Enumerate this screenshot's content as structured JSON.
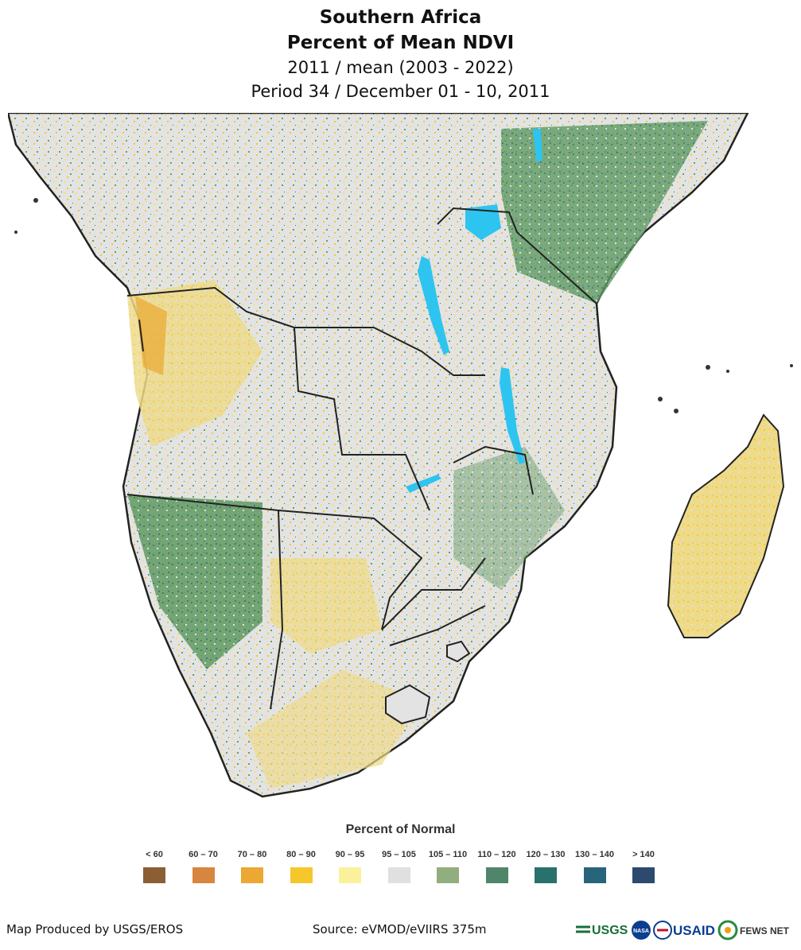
{
  "title": {
    "line1": "Southern Africa",
    "line2": "Percent of Mean NDVI",
    "line3": "2011 / mean (2003 - 2022)",
    "line4": "Period 34 / December 01 - 10, 2011"
  },
  "legend": {
    "title": "Percent of Normal",
    "items": [
      {
        "label": "< 60",
        "color": "#8b5e34"
      },
      {
        "label": "60 – 70",
        "color": "#d8853f"
      },
      {
        "label": "70 – 80",
        "color": "#eba832"
      },
      {
        "label": "80 – 90",
        "color": "#f5c72a"
      },
      {
        "label": "90 – 95",
        "color": "#fbf19b"
      },
      {
        "label": "95 – 105",
        "color": "#e0e0e0"
      },
      {
        "label": "105 – 110",
        "color": "#93ae7e"
      },
      {
        "label": "110 – 120",
        "color": "#4f8569"
      },
      {
        "label": "120 – 130",
        "color": "#28716c"
      },
      {
        "label": "130 – 140",
        "color": "#28657a"
      },
      {
        "label": "> 140",
        "color": "#2c4a6e"
      }
    ]
  },
  "footer": {
    "left": "Map Produced by USGS/EROS",
    "center": "Source: eVMOD/eVIIRS 375m"
  },
  "logos": {
    "usgs": "USGS",
    "nasa": "NASA",
    "usaid": "USAID",
    "fewsnet": "FEWS NET"
  },
  "colors": {
    "border": "#222222",
    "water": "#2ec4f0",
    "ocean": "#ffffff"
  }
}
